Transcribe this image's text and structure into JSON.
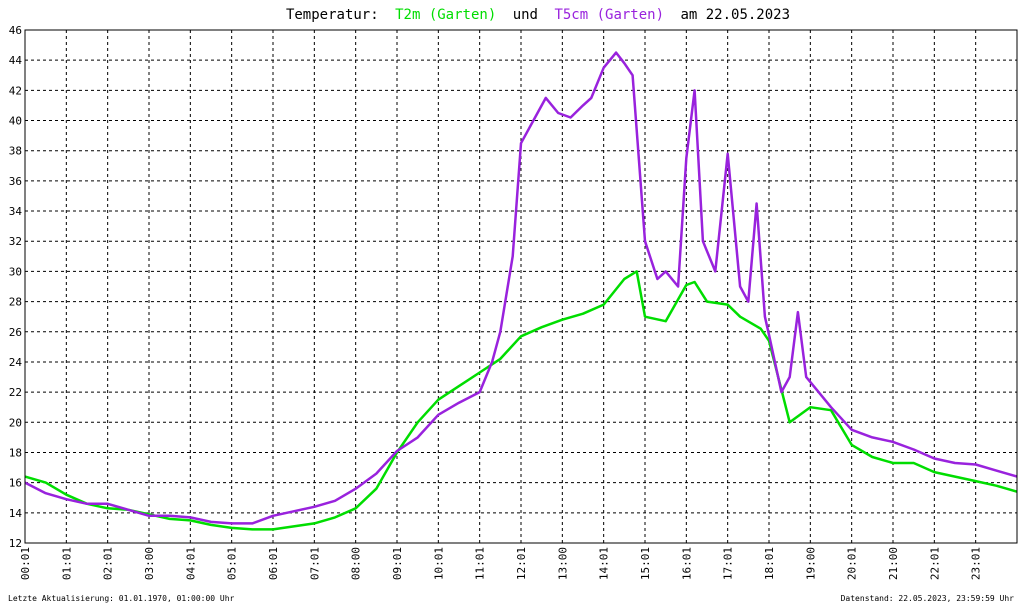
{
  "chart_data": {
    "type": "line",
    "title_parts": {
      "prefix": "Temperatur:",
      "series1": "T2m (Garten)",
      "joiner": "und",
      "series2": "T5cm (Garten)",
      "suffix": "am 22.05.2023"
    },
    "xlabels": [
      "00:01",
      "01:01",
      "02:01",
      "03:00",
      "04:01",
      "05:01",
      "06:01",
      "07:01",
      "08:00",
      "09:01",
      "10:01",
      "11:01",
      "12:01",
      "13:00",
      "14:01",
      "15:01",
      "16:01",
      "17:01",
      "18:01",
      "19:00",
      "20:01",
      "21:00",
      "22:01",
      "23:01"
    ],
    "xlim": [
      0,
      24
    ],
    "ylim": [
      12,
      46
    ],
    "yticks": [
      12,
      14,
      16,
      18,
      20,
      22,
      24,
      26,
      28,
      30,
      32,
      34,
      36,
      38,
      40,
      42,
      44,
      46
    ],
    "grid": true,
    "series": [
      {
        "name": "T2m (Garten)",
        "color": "#00dd00",
        "points": [
          [
            0,
            16.4
          ],
          [
            0.5,
            16.0
          ],
          [
            1,
            15.2
          ],
          [
            1.5,
            14.6
          ],
          [
            2,
            14.3
          ],
          [
            2.5,
            14.2
          ],
          [
            3,
            13.9
          ],
          [
            3.5,
            13.6
          ],
          [
            4,
            13.5
          ],
          [
            4.5,
            13.2
          ],
          [
            5,
            13.0
          ],
          [
            5.5,
            12.9
          ],
          [
            6,
            12.9
          ],
          [
            6.5,
            13.1
          ],
          [
            7,
            13.3
          ],
          [
            7.5,
            13.7
          ],
          [
            8,
            14.3
          ],
          [
            8.5,
            15.6
          ],
          [
            9,
            18.0
          ],
          [
            9.5,
            20.0
          ],
          [
            10,
            21.5
          ],
          [
            10.5,
            22.4
          ],
          [
            11,
            23.3
          ],
          [
            11.5,
            24.2
          ],
          [
            12,
            25.7
          ],
          [
            12.5,
            26.3
          ],
          [
            13,
            26.8
          ],
          [
            13.5,
            27.2
          ],
          [
            14,
            27.8
          ],
          [
            14.5,
            29.5
          ],
          [
            14.8,
            30.0
          ],
          [
            15,
            27.0
          ],
          [
            15.5,
            26.7
          ],
          [
            16,
            29.1
          ],
          [
            16.2,
            29.3
          ],
          [
            16.5,
            28.0
          ],
          [
            17,
            27.8
          ],
          [
            17.3,
            27.0
          ],
          [
            17.8,
            26.2
          ],
          [
            18,
            25.4
          ],
          [
            18.5,
            20.0
          ],
          [
            19,
            21.0
          ],
          [
            19.5,
            20.8
          ],
          [
            20,
            18.5
          ],
          [
            20.5,
            17.7
          ],
          [
            21,
            17.3
          ],
          [
            21.5,
            17.3
          ],
          [
            22,
            16.7
          ],
          [
            22.5,
            16.4
          ],
          [
            23,
            16.1
          ],
          [
            23.5,
            15.8
          ],
          [
            24,
            15.4
          ]
        ]
      },
      {
        "name": "T5cm (Garten)",
        "color": "#9922dd",
        "points": [
          [
            0,
            16.0
          ],
          [
            0.5,
            15.3
          ],
          [
            1,
            14.9
          ],
          [
            1.5,
            14.6
          ],
          [
            2,
            14.6
          ],
          [
            2.5,
            14.2
          ],
          [
            3,
            13.8
          ],
          [
            3.5,
            13.8
          ],
          [
            4,
            13.7
          ],
          [
            4.5,
            13.4
          ],
          [
            5,
            13.3
          ],
          [
            5.5,
            13.3
          ],
          [
            6,
            13.8
          ],
          [
            6.5,
            14.1
          ],
          [
            7,
            14.4
          ],
          [
            7.5,
            14.8
          ],
          [
            8,
            15.6
          ],
          [
            8.5,
            16.6
          ],
          [
            9,
            18.1
          ],
          [
            9.5,
            19.0
          ],
          [
            10,
            20.5
          ],
          [
            10.5,
            21.3
          ],
          [
            11,
            22.0
          ],
          [
            11.3,
            24.0
          ],
          [
            11.5,
            26.0
          ],
          [
            11.8,
            31.0
          ],
          [
            12,
            38.5
          ],
          [
            12.3,
            40.0
          ],
          [
            12.6,
            41.5
          ],
          [
            12.9,
            40.5
          ],
          [
            13.2,
            40.2
          ],
          [
            13.5,
            41.0
          ],
          [
            13.7,
            41.5
          ],
          [
            14,
            43.5
          ],
          [
            14.3,
            44.5
          ],
          [
            14.5,
            43.8
          ],
          [
            14.7,
            43.0
          ],
          [
            15,
            32.0
          ],
          [
            15.3,
            29.5
          ],
          [
            15.5,
            30.0
          ],
          [
            15.8,
            29.0
          ],
          [
            16,
            37.5
          ],
          [
            16.2,
            42.0
          ],
          [
            16.4,
            32.0
          ],
          [
            16.7,
            30.0
          ],
          [
            17,
            37.8
          ],
          [
            17.3,
            29.0
          ],
          [
            17.5,
            28.0
          ],
          [
            17.7,
            34.5
          ],
          [
            17.9,
            27.0
          ],
          [
            18,
            25.8
          ],
          [
            18.3,
            22.0
          ],
          [
            18.5,
            23.0
          ],
          [
            18.7,
            27.3
          ],
          [
            18.9,
            23.0
          ],
          [
            19.2,
            22.0
          ],
          [
            19.5,
            21.0
          ],
          [
            20,
            19.5
          ],
          [
            20.5,
            19.0
          ],
          [
            21,
            18.7
          ],
          [
            21.5,
            18.2
          ],
          [
            22,
            17.6
          ],
          [
            22.5,
            17.3
          ],
          [
            23,
            17.2
          ],
          [
            23.5,
            16.8
          ],
          [
            24,
            16.4
          ]
        ]
      }
    ],
    "footer_left": "Letzte Aktualisierung: 01.01.1970, 01:00:00 Uhr",
    "footer_right": "Datenstand: 22.05.2023, 23:59:59 Uhr"
  }
}
